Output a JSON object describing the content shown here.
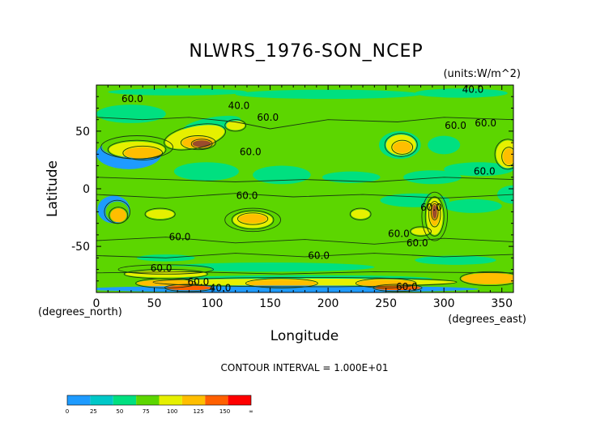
{
  "chart_data": {
    "type": "heatmap",
    "title": "NLWRS_1976-SON_NCEP",
    "units": "(units:W/m^2)",
    "xlabel": "Longitude",
    "ylabel": "Latitude",
    "x_unit_note": "(degrees_east)",
    "y_unit_note": "(degrees_north)",
    "xlim": [
      0,
      360
    ],
    "ylim": [
      -90,
      90
    ],
    "x_ticks": [
      0,
      50,
      100,
      150,
      200,
      250,
      300,
      350
    ],
    "y_ticks": [
      -50,
      0,
      50
    ],
    "contour_interval_label": "CONTOUR INTERVAL = 1.000E+01",
    "contour_labels": [
      {
        "text": "60.0",
        "lon": 31,
        "lat": 78
      },
      {
        "text": "40.0",
        "lon": 123,
        "lat": 72
      },
      {
        "text": "60.0",
        "lon": 148,
        "lat": 62
      },
      {
        "text": "60.0",
        "lon": 133,
        "lat": 32
      },
      {
        "text": "60.0",
        "lon": 310,
        "lat": 55
      },
      {
        "text": "60.0",
        "lon": 336,
        "lat": 57
      },
      {
        "text": "40.0",
        "lon": 325,
        "lat": 86
      },
      {
        "text": "60.0",
        "lon": 335,
        "lat": 15
      },
      {
        "text": "60.0",
        "lon": 130,
        "lat": -6
      },
      {
        "text": "60.0",
        "lon": 289,
        "lat": -16
      },
      {
        "text": "60.0",
        "lon": 72,
        "lat": -42
      },
      {
        "text": "60.0",
        "lon": 261,
        "lat": -39
      },
      {
        "text": "60.0",
        "lon": 277,
        "lat": -47
      },
      {
        "text": "60.0",
        "lon": 192,
        "lat": -58
      },
      {
        "text": "60.0",
        "lon": 56,
        "lat": -69
      },
      {
        "text": "60.0",
        "lon": 88,
        "lat": -81
      },
      {
        "text": "40.0",
        "lon": 107,
        "lat": -86
      },
      {
        "text": "60.0",
        "lon": 268,
        "lat": -85
      }
    ],
    "colorbar": {
      "levels": [
        "0",
        "25",
        "50",
        "75",
        "100",
        "125",
        "150",
        "∞"
      ],
      "colors": [
        "#1e9bff",
        "#00c8c8",
        "#00e080",
        "#5cd600",
        "#e6f000",
        "#ffbe00",
        "#ff6000",
        "#ff0000"
      ]
    },
    "value_colors": {
      "lt25": "#1e9bff",
      "25-50": "#00c8c8",
      "50-62": "#00e080",
      "62-75": "#5cd600",
      "75-100": "#e6f000",
      "100-125": "#ffbe00",
      "125-150": "#ff6000",
      "gt150": "#ff0000",
      "dark_high": "#9a4b2c"
    },
    "grid": false
  }
}
